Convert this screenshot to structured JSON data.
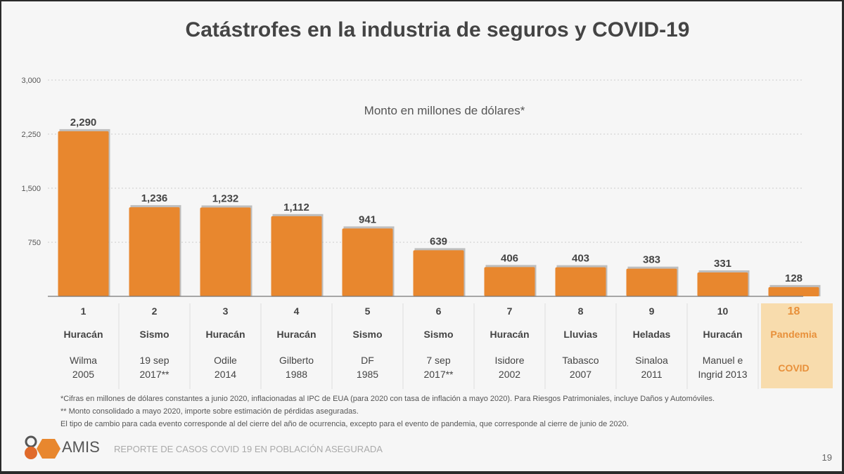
{
  "title": "Catástrofes en la industria de seguros y COVID-19",
  "chart_data": {
    "type": "bar",
    "title": "Catástrofes en la industria de seguros y COVID-19",
    "subtitle": "Monto en millones de dólares*",
    "ylim": [
      0,
      3000
    ],
    "yticks": [
      "3,000",
      "2,250",
      "1,500",
      "750"
    ],
    "ytick_values": [
      3000,
      2250,
      1500,
      750
    ],
    "grid": true,
    "bar_color": "#e8872e",
    "highlight_color": "#f8dcad",
    "highlight_text_color": "#e8903a",
    "values": [
      2290,
      1236,
      1232,
      1112,
      941,
      639,
      406,
      403,
      383,
      331,
      128
    ],
    "value_labels": [
      "2,290",
      "1,236",
      "1,232",
      "1,112",
      "941",
      "639",
      "406",
      "403",
      "383",
      "331",
      "128"
    ],
    "categories": [
      {
        "rank": "1",
        "type": "Huracán",
        "name1": "Wilma",
        "name2": "2005"
      },
      {
        "rank": "2",
        "type": "Sismo",
        "name1": "19 sep",
        "name2": "2017**"
      },
      {
        "rank": "3",
        "type": "Huracán",
        "name1": "Odile",
        "name2": "2014"
      },
      {
        "rank": "4",
        "type": "Huracán",
        "name1": "Gilberto",
        "name2": "1988"
      },
      {
        "rank": "5",
        "type": "Sismo",
        "name1": "DF",
        "name2": "1985"
      },
      {
        "rank": "6",
        "type": "Sismo",
        "name1": "7 sep",
        "name2": "2017**"
      },
      {
        "rank": "7",
        "type": "Huracán",
        "name1": "Isidore",
        "name2": "2002"
      },
      {
        "rank": "8",
        "type": "Lluvias",
        "name1": "Tabasco",
        "name2": "2007"
      },
      {
        "rank": "9",
        "type": "Heladas",
        "name1": "Sinaloa",
        "name2": "2011"
      },
      {
        "rank": "10",
        "type": "Huracán",
        "name1": "Manuel e",
        "name2": "Ingrid 2013"
      },
      {
        "rank": "18",
        "type": "Pandemia",
        "name1": "",
        "name2": "COVID"
      }
    ]
  },
  "notes": [
    "*Cifras en millones de dólares constantes a junio 2020, inflacionadas al IPC de EUA (para 2020 con tasa de inflación a mayo 2020). Para Riesgos Patrimoniales, incluye Daños y Automóviles.",
    "** Monto consolidado a mayo 2020, importe sobre estimación de pérdidas aseguradas.",
    "El tipo de cambio para cada evento corresponde al del cierre del año de ocurrencia, excepto para el evento de pandemia, que corresponde al cierre de junio de 2020."
  ],
  "footer": {
    "logo": "AMIS",
    "report": "REPORTE DE CASOS COVID 19 EN POBLACIÓN ASEGURADA",
    "page": "19"
  }
}
